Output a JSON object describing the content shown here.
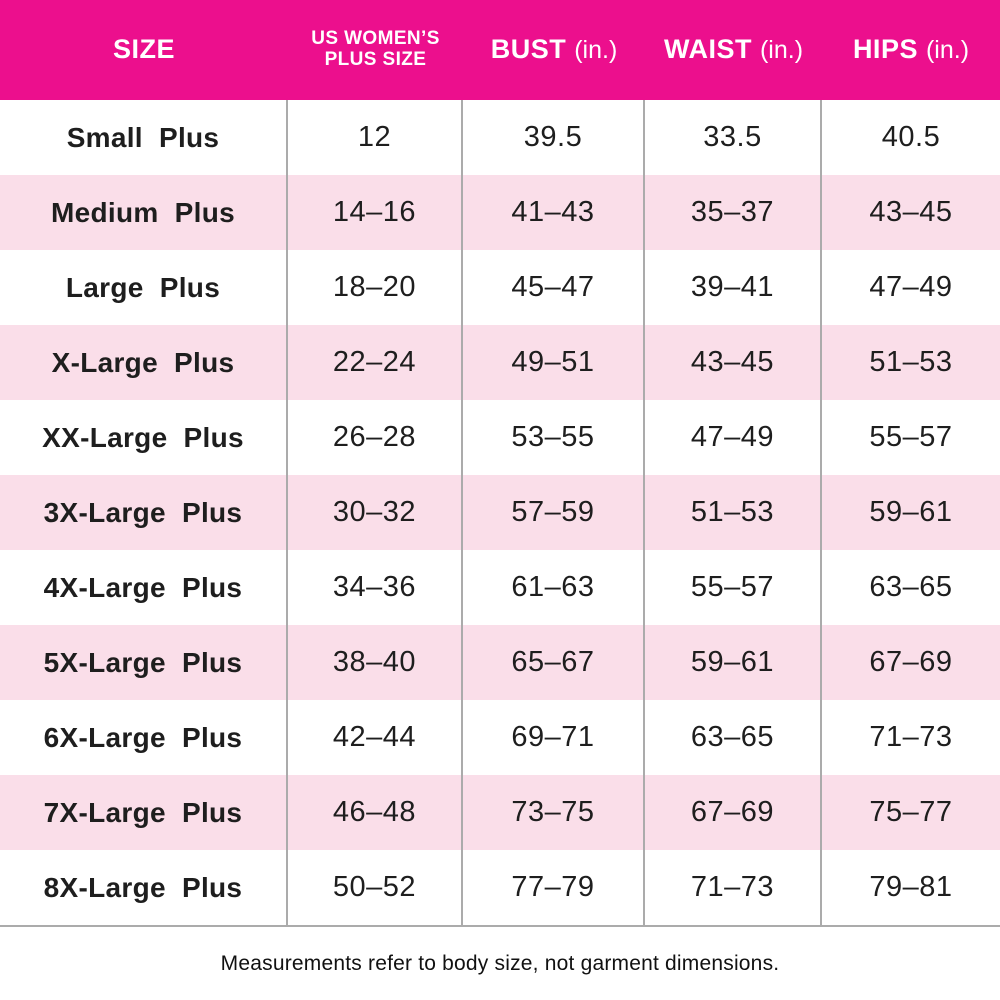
{
  "table": {
    "headers": {
      "size": "SIZE",
      "plus_line1": "US WOMEN’S",
      "plus_line2": "PLUS SIZE",
      "bust": "BUST",
      "bust_unit": "(in.)",
      "waist": "WAIST",
      "waist_unit": "(in.)",
      "hips": "HIPS",
      "hips_unit": "(in.)"
    },
    "rows": [
      {
        "size": "Small Plus",
        "plus": "12",
        "bust": "39.5",
        "waist": "33.5",
        "hips": "40.5"
      },
      {
        "size": "Medium Plus",
        "plus": "14–16",
        "bust": "41–43",
        "waist": "35–37",
        "hips": "43–45"
      },
      {
        "size": "Large Plus",
        "plus": "18–20",
        "bust": "45–47",
        "waist": "39–41",
        "hips": "47–49"
      },
      {
        "size": "X-Large Plus",
        "plus": "22–24",
        "bust": "49–51",
        "waist": "43–45",
        "hips": "51–53"
      },
      {
        "size": "XX-Large Plus",
        "plus": "26–28",
        "bust": "53–55",
        "waist": "47–49",
        "hips": "55–57"
      },
      {
        "size": "3X-Large Plus",
        "plus": "30–32",
        "bust": "57–59",
        "waist": "51–53",
        "hips": "59–61"
      },
      {
        "size": "4X-Large Plus",
        "plus": "34–36",
        "bust": "61–63",
        "waist": "55–57",
        "hips": "63–65"
      },
      {
        "size": "5X-Large Plus",
        "plus": "38–40",
        "bust": "65–67",
        "waist": "59–61",
        "hips": "67–69"
      },
      {
        "size": "6X-Large Plus",
        "plus": "42–44",
        "bust": "69–71",
        "waist": "63–65",
        "hips": "71–73"
      },
      {
        "size": "7X-Large Plus",
        "plus": "46–48",
        "bust": "73–75",
        "waist": "67–69",
        "hips": "75–77"
      },
      {
        "size": "8X-Large Plus",
        "plus": "50–52",
        "bust": "77–79",
        "waist": "71–73",
        "hips": "79–81"
      }
    ]
  },
  "footer": {
    "note": "Measurements refer to body size, not garment dimensions."
  },
  "colors": {
    "header_background": "#EC0F8D",
    "header_text": "#FFFFFF",
    "row_alt_background": "#FADEE9",
    "row_background": "#FFFFFF",
    "divider_gray": "#ABABAB",
    "body_text": "#1E1E1E"
  }
}
